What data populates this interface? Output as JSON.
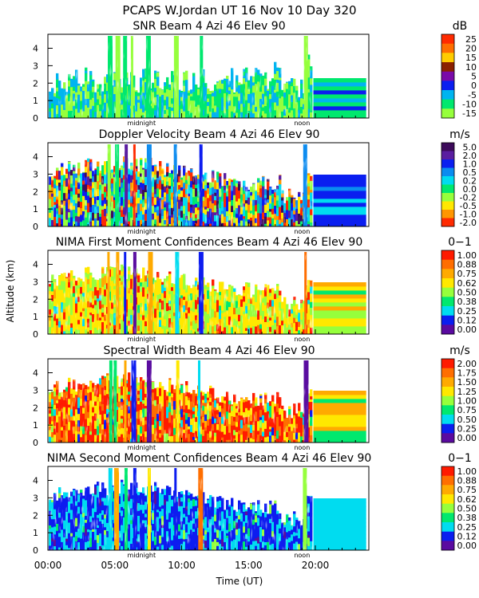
{
  "chart_data": {
    "type": "heatmap",
    "title": "PCAPS W.Jordan UT  16 Nov 10 Day 320",
    "xlabel": "Time (UT)",
    "ylabel": "Altitude (km)",
    "x_ticks": [
      "00:00",
      "05:00",
      "10:00",
      "15:00",
      "20:00"
    ],
    "x_range": [
      0,
      24
    ],
    "y_ticks": [
      "0",
      "1",
      "2",
      "3",
      "4"
    ],
    "y_range": [
      0,
      4.8
    ],
    "markers": [
      "midnight",
      "noon"
    ],
    "panels": [
      {
        "title": "SNR Beam 4 Azi  46 Elev 90",
        "unit": "dB",
        "colorbar_labels": [
          "25",
          "20",
          "15",
          "10",
          "5",
          "0",
          "-5",
          "-10",
          "-15"
        ],
        "colorbar_colors": [
          "#ff2a00",
          "#ff6e00",
          "#ffcc00",
          "#8a2000",
          "#7a0aa8",
          "#0a1ef0",
          "#00b4f0",
          "#00e86e",
          "#96ff3c"
        ]
      },
      {
        "title": "Doppler Velocity Beam 4 Azi  46 Elev 90",
        "unit": "m/s",
        "colorbar_labels": [
          "5.0",
          "2.0",
          "1.0",
          "0.5",
          "0.2",
          "0.0",
          "-0.2",
          "-0.5",
          "-1.0",
          "-2.0"
        ],
        "colorbar_colors": [
          "#3c0a5a",
          "#5a1ea0",
          "#0a1ef0",
          "#0a8cf0",
          "#00dcf0",
          "#00e86e",
          "#96ff3c",
          "#ffe800",
          "#ff9600",
          "#ff2a00"
        ]
      },
      {
        "title": "NIMA First Moment Confidences Beam 4 Azi  46 Elev 90",
        "unit": "0−1",
        "colorbar_labels": [
          "1.00",
          "0.88",
          "0.75",
          "0.62",
          "0.50",
          "0.38",
          "0.25",
          "0.12",
          "0.00"
        ],
        "colorbar_colors": [
          "#ff1a00",
          "#ff6e00",
          "#ffaa00",
          "#ffe800",
          "#96ff3c",
          "#00e86e",
          "#00dcf0",
          "#0a1ef0",
          "#5a0aa0"
        ]
      },
      {
        "title": "Spectral Width Beam 4 Azi  46 Elev 90",
        "unit": "m/s",
        "colorbar_labels": [
          "2.00",
          "1.75",
          "1.50",
          "1.25",
          "1.00",
          "0.75",
          "0.50",
          "0.25",
          "0.00"
        ],
        "colorbar_colors": [
          "#ff1a00",
          "#ff6e00",
          "#ffaa00",
          "#ffe800",
          "#96ff3c",
          "#00e86e",
          "#00dcf0",
          "#0a1ef0",
          "#5a0aa0"
        ]
      },
      {
        "title": "NIMA Second Moment Confidences Beam 4 Azi  46 Elev 90",
        "unit": "0−1",
        "colorbar_labels": [
          "1.00",
          "0.88",
          "0.75",
          "0.62",
          "0.50",
          "0.38",
          "0.25",
          "0.12",
          "0.00"
        ],
        "colorbar_colors": [
          "#ff1a00",
          "#ff6e00",
          "#ffaa00",
          "#ffe800",
          "#96ff3c",
          "#00e86e",
          "#00dcf0",
          "#0a1ef0",
          "#5a0aa0"
        ]
      }
    ]
  }
}
